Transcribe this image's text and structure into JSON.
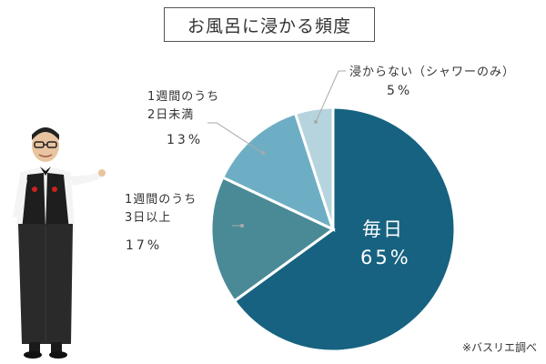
{
  "title": "お風呂に浸かる頻度",
  "source": "※バスリエ調べ",
  "chart_data": {
    "type": "pie",
    "title": "お風呂に浸かる頻度",
    "slices": [
      {
        "label": "毎日",
        "label_lines": [
          "毎日"
        ],
        "value": 65,
        "display": "65%",
        "color": "#166280"
      },
      {
        "label": "1週間のうち3日以上",
        "label_lines": [
          "1週間のうち",
          "3日以上"
        ],
        "value": 17,
        "display": "17%",
        "color": "#4a8a96"
      },
      {
        "label": "1週間のうち2日未満",
        "label_lines": [
          "1週間のうち",
          "2日未満"
        ],
        "value": 13,
        "display": "13%",
        "color": "#6eaec4"
      },
      {
        "label": "浸からない（シャワーのみ）",
        "label_lines": [
          "浸からない（シャワーのみ）"
        ],
        "value": 5,
        "display": "5%",
        "color": "#b5d4de"
      }
    ]
  },
  "colors": {
    "leader_line": "#aaaaaa",
    "slice_border": "#ffffff"
  }
}
